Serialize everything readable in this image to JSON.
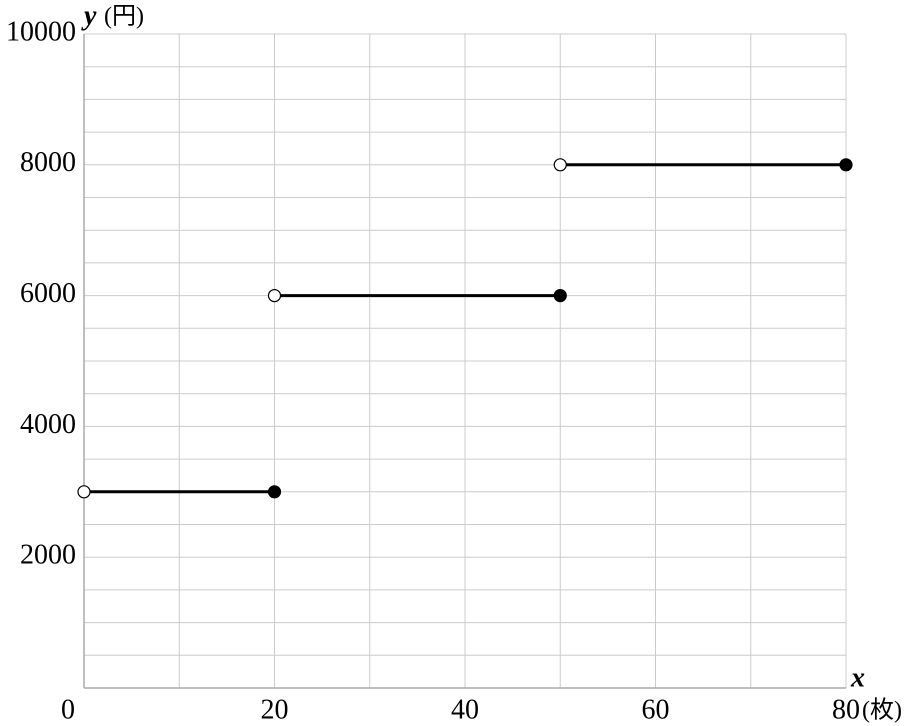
{
  "chart_data": {
    "type": "step",
    "xlabel": "x",
    "xunit": "(枚)",
    "ylabel": "y",
    "yunit": "(円)",
    "xlim": [
      0,
      80
    ],
    "ylim": [
      0,
      10000
    ],
    "xticks": [
      0,
      20,
      40,
      60,
      80
    ],
    "yticks": [
      2000,
      4000,
      6000,
      8000,
      10000
    ],
    "x_gridlines": [
      10,
      20,
      30,
      40,
      50,
      60,
      70,
      80
    ],
    "y_gridlines": [
      500,
      1000,
      1500,
      2000,
      2500,
      3000,
      3500,
      4000,
      4500,
      5000,
      5500,
      6000,
      6500,
      7000,
      7500,
      8000,
      8500,
      9000,
      9500,
      10000
    ],
    "grid": true,
    "color": "#000000",
    "segments": [
      {
        "x": [
          0,
          20
        ],
        "y": 3000,
        "open": [
          true,
          false
        ]
      },
      {
        "x": [
          20,
          50
        ],
        "y": 6000,
        "open": [
          true,
          false
        ]
      },
      {
        "x": [
          50,
          80
        ],
        "y": 8000,
        "open": [
          true,
          false
        ]
      }
    ]
  }
}
